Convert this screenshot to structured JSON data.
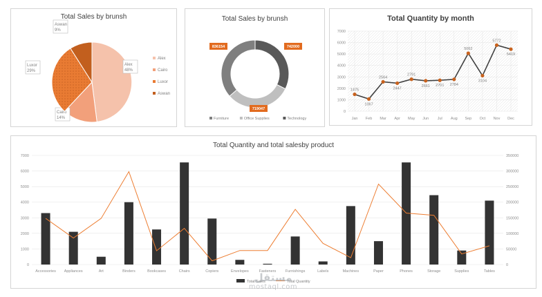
{
  "chart_data": [
    {
      "type": "pie",
      "title": "Total Sales by brunsh",
      "slices": [
        {
          "label": "Alex",
          "value": 48,
          "display": "48%",
          "color": "#f5c2ab"
        },
        {
          "label": "Cairo",
          "value": 14,
          "display": "14%",
          "color": "#f2a07b"
        },
        {
          "label": "Luxor",
          "value": 29,
          "display": "29%",
          "color": "#e97b33"
        },
        {
          "label": "Aswan",
          "value": 9,
          "display": "9%",
          "color": "#c25f1e"
        }
      ],
      "legend_position": "right"
    },
    {
      "type": "pie",
      "subtype": "doughnut",
      "title": "Total Sales by brunsh",
      "slices": [
        {
          "label": "Furniture",
          "value": 836154,
          "display": "836154",
          "color": "#7f7f7f"
        },
        {
          "label": "Office Supplies",
          "value": 719047,
          "display": "719047",
          "color": "#bfbfbf"
        },
        {
          "label": "Technology",
          "value": 742000,
          "display": "742000",
          "color": "#595959"
        }
      ],
      "legend_position": "bottom"
    },
    {
      "type": "line",
      "title": "Total Quantity by month",
      "categories": [
        "Jan",
        "Feb",
        "Mar",
        "Apr",
        "May",
        "Jun",
        "Jul",
        "Aug",
        "Sep",
        "Oct",
        "Nov",
        "Dec"
      ],
      "values": [
        1475,
        1067,
        2564,
        2447,
        2791,
        2661,
        2701,
        2784,
        5062,
        3104,
        5772,
        5419
      ],
      "ylim": [
        0,
        7000
      ],
      "yticks": [
        0,
        1000,
        2000,
        3000,
        4000,
        5000,
        6000,
        7000
      ],
      "grid": true,
      "color": "#404040",
      "marker_color": "#c8621e"
    },
    {
      "type": "bar",
      "title": "Total Quantity and total salesby product",
      "categories": [
        "Accessories",
        "Appliances",
        "Art",
        "Binders",
        "Bookcases",
        "Chairs",
        "Copiers",
        "Envelopes",
        "Fasteners",
        "Furnishings",
        "Labels",
        "Machines",
        "Paper",
        "Phones",
        "Storage",
        "Supplies",
        "Tables"
      ],
      "series": [
        {
          "name": "Total Sales",
          "type": "bar",
          "axis": "left",
          "color": "#333333",
          "values": [
            3300,
            2100,
            500,
            4000,
            2250,
            6550,
            2950,
            300,
            50,
            1800,
            200,
            3750,
            1500,
            6550,
            4450,
            900,
            4100
          ]
        },
        {
          "name": "Total Quantity",
          "type": "line",
          "axis": "right",
          "color": "#ed7d31",
          "values": [
            148000,
            85000,
            148000,
            298000,
            44000,
            116000,
            12000,
            45000,
            45000,
            177000,
            68000,
            22000,
            258000,
            165000,
            158000,
            34000,
            60000
          ]
        }
      ],
      "ylim_left": [
        0,
        7000
      ],
      "yticks_left": [
        0,
        1000,
        2000,
        3000,
        4000,
        5000,
        6000,
        7000
      ],
      "ylim_right": [
        0,
        350000
      ],
      "yticks_right": [
        0,
        50000,
        100000,
        150000,
        200000,
        250000,
        300000,
        350000
      ],
      "grid": true,
      "legend_position": "bottom"
    }
  ],
  "watermark": {
    "arabic": "مستقل",
    "latin": "mostaql.com"
  }
}
